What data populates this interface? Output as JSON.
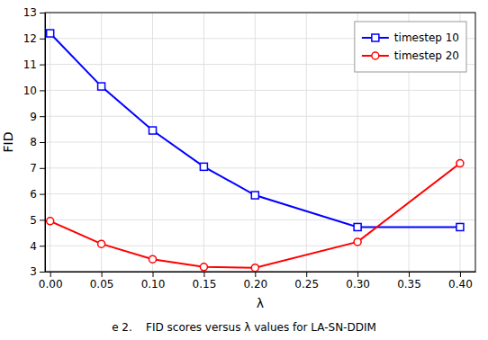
{
  "chart_data": {
    "type": "line",
    "xlabel": "λ",
    "ylabel": "FID",
    "annotations": [
      "e 2.    FID scores versus λ values for LA-SN-DDIM"
    ],
    "x": [
      0,
      0.05,
      0.1,
      0.15,
      0.2,
      0.3,
      0.4
    ],
    "series": [
      {
        "name": "timestep 10",
        "color": "#0000ff",
        "marker": "square",
        "values": [
          12.2,
          10.15,
          8.45,
          7.05,
          5.95,
          4.72,
          4.72
        ]
      },
      {
        "name": "timestep 20",
        "color": "#ff0000",
        "marker": "circle",
        "values": [
          4.95,
          4.07,
          3.48,
          3.18,
          3.15,
          4.15,
          7.18
        ]
      }
    ],
    "xlim": [
      -0.005,
      0.415
    ],
    "ylim": [
      3,
      13
    ],
    "xticks": [
      {
        "value": 0,
        "label": "0.00"
      },
      0.05,
      {
        "value": 0.1,
        "label": "0.10"
      },
      0.15,
      {
        "value": 0.2,
        "label": "0.20"
      },
      0.25,
      {
        "value": 0.3,
        "label": "0.30"
      },
      0.35,
      {
        "value": 0.4,
        "label": "0.40"
      }
    ],
    "yticks": [
      3,
      4,
      5,
      6,
      7,
      8,
      9,
      10,
      11,
      12,
      13
    ],
    "grid": true,
    "legend": "upper right"
  }
}
